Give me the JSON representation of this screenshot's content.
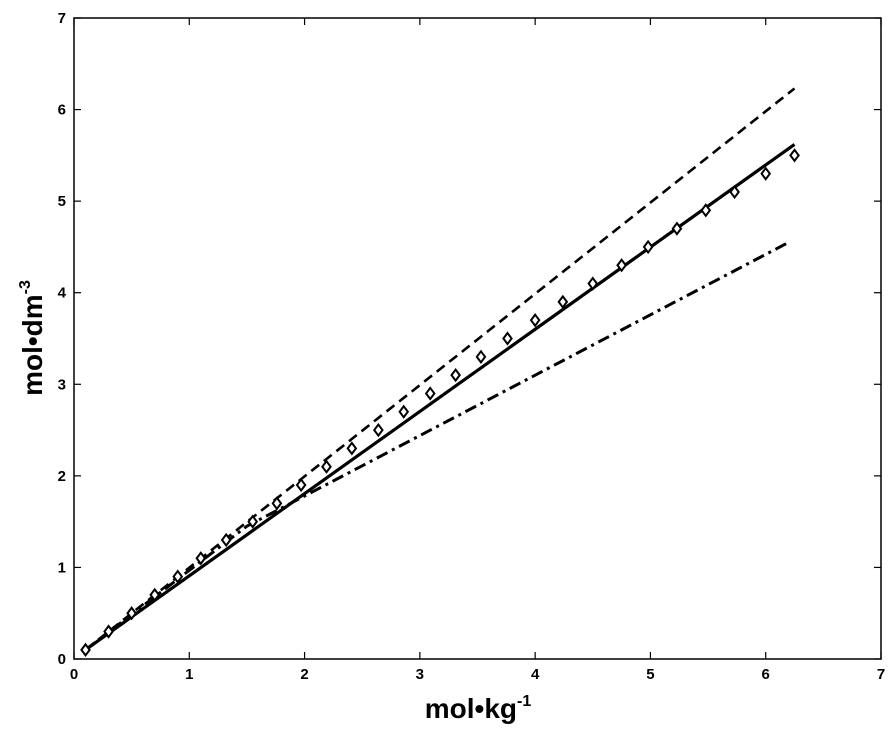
{
  "chart_data": {
    "type": "line",
    "xlabel": "mol•kg",
    "xlabel_sup": "-1",
    "ylabel": "mol•dm",
    "ylabel_sup": "-3",
    "xlim": [
      0,
      7
    ],
    "ylim": [
      0,
      7
    ],
    "xticks": [
      "0",
      "1",
      "2",
      "3",
      "4",
      "5",
      "6",
      "7"
    ],
    "yticks": [
      "0",
      "1",
      "2",
      "3",
      "4",
      "5",
      "6",
      "7"
    ],
    "grid": false,
    "series": [
      {
        "style": "solid",
        "marker": "none",
        "x": [
          0.1,
          6.25
        ],
        "y": [
          0.1,
          5.62
        ]
      },
      {
        "style": "dashed",
        "marker": "none",
        "x": [
          0.1,
          6.25
        ],
        "y": [
          0.1,
          6.23
        ]
      },
      {
        "style": "dash-dot",
        "marker": "none",
        "x": [
          0.1,
          1.5,
          6.2
        ],
        "y": [
          0.1,
          1.45,
          4.55
        ]
      },
      {
        "style": "none",
        "marker": "diamond",
        "x": [
          0.1,
          0.3,
          0.5,
          0.7,
          0.9,
          1.1,
          1.32,
          1.55,
          1.76,
          1.97,
          2.19,
          2.41,
          2.64,
          2.86,
          3.09,
          3.31,
          3.53,
          3.76,
          4.0,
          4.24,
          4.5,
          4.75,
          4.98,
          5.23,
          5.48,
          5.73,
          6.0,
          6.25
        ],
        "y": [
          0.1,
          0.3,
          0.5,
          0.7,
          0.9,
          1.1,
          1.3,
          1.5,
          1.7,
          1.9,
          2.1,
          2.3,
          2.5,
          2.7,
          2.9,
          3.1,
          3.3,
          3.5,
          3.7,
          3.9,
          4.1,
          4.3,
          4.5,
          4.7,
          4.9,
          5.1,
          5.3,
          5.5
        ]
      }
    ]
  }
}
